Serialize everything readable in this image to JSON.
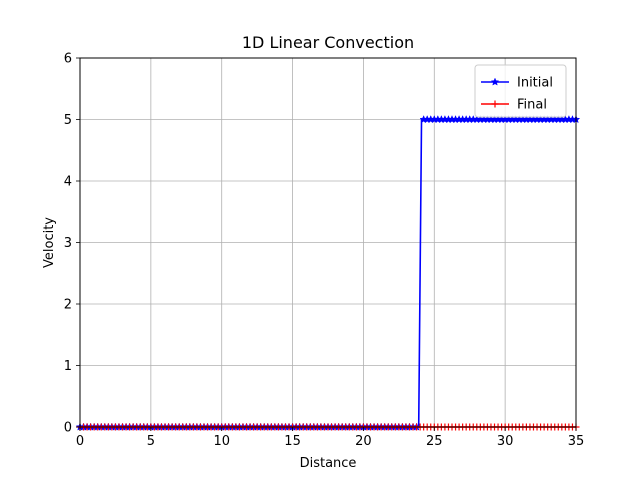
{
  "chart_data": {
    "type": "line",
    "title": "1D Linear Convection",
    "xlabel": "Distance",
    "ylabel": "Velocity",
    "xlim": [
      0,
      35
    ],
    "ylim": [
      0,
      6
    ],
    "xticks": [
      0,
      5,
      10,
      15,
      20,
      25,
      30,
      35
    ],
    "yticks": [
      0,
      1,
      2,
      3,
      4,
      5,
      6
    ],
    "grid": true,
    "legend_position": "top-right",
    "series": [
      {
        "name": "Initial",
        "color": "#0000ff",
        "marker": "star",
        "x": [
          0,
          23.9,
          24.1,
          35
        ],
        "y": [
          0,
          0,
          5,
          5
        ],
        "marker_spacing": 0.25
      },
      {
        "name": "Final",
        "color": "#ff0000",
        "marker": "plus",
        "x": [
          0,
          35
        ],
        "y": [
          0,
          0
        ],
        "marker_spacing": 0.25
      }
    ]
  }
}
